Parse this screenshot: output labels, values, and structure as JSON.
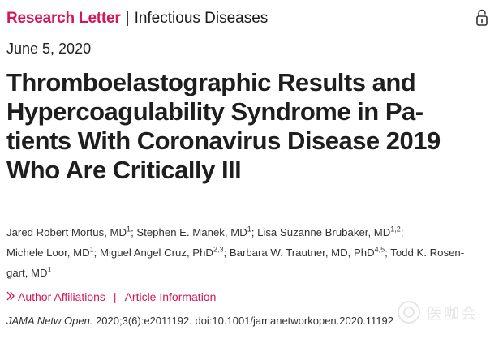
{
  "header": {
    "article_type": "Research Letter",
    "separator": "|",
    "category": "Infectious Diseases",
    "lock_icon": "open-lock-icon"
  },
  "publication_date": "June 5, 2020",
  "title_lines": [
    "Thromboelastographic Results and",
    "Hypercoagulability Syndrome in Pa-",
    "tients With Coronavirus Disease 2019",
    "Who Are Critically Ill"
  ],
  "authors": [
    {
      "name": "Jared Robert Mortus, MD",
      "aff": "1",
      "sep": "; "
    },
    {
      "name": "Stephen E. Manek, MD",
      "aff": "1",
      "sep": "; "
    },
    {
      "name": "Lisa Suzanne Brubaker, MD",
      "aff": "1,2",
      "sep": ";"
    },
    {
      "name": "Michele Loor, MD",
      "aff": "1",
      "sep": "; "
    },
    {
      "name": "Miguel Angel Cruz, PhD",
      "aff": "2,3",
      "sep": "; "
    },
    {
      "name": "Barbara W. Trautner, MD, PhD",
      "aff": "4,5",
      "sep": "; "
    },
    {
      "name_line1": "Todd K. Rosen-",
      "name_line2": "gart, MD",
      "aff": "1"
    }
  ],
  "links": {
    "author_affiliations": "Author Affiliations",
    "separator": "|",
    "article_information": "Article Information"
  },
  "citation": {
    "journal": "JAMA Netw Open.",
    "details": "2020;3(6):e2011192. doi:10.1001/jamanetworkopen.2020.11192"
  },
  "watermark": {
    "text": "医咖会",
    "icon": "watermark-logo-icon"
  }
}
